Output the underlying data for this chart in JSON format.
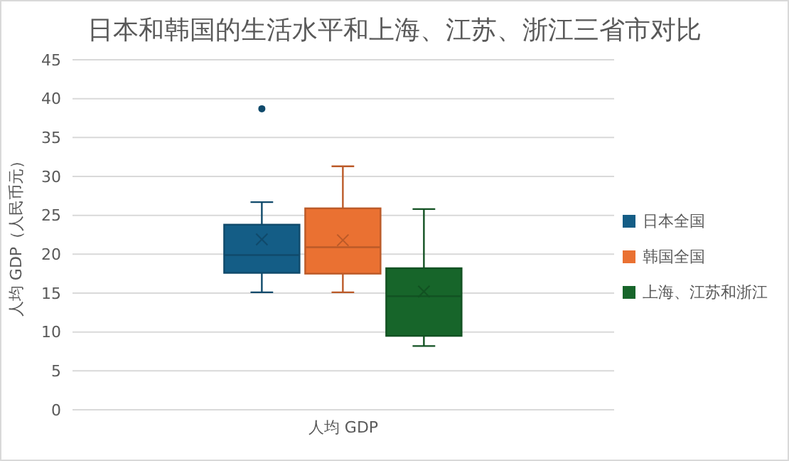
{
  "chart_data": {
    "type": "box",
    "title": "日本和韩国的生活水平和上海、江苏、浙江三省市对比",
    "ylabel": "人均 GDP（人民币元）",
    "categories": [
      "人均 GDP"
    ],
    "series": [
      {
        "name": "日本全国",
        "color": "#145d86",
        "boxes": [
          {
            "low": 15.1,
            "q1": 17.6,
            "median": 19.9,
            "q3": 23.8,
            "high": 26.7,
            "mean": 21.9,
            "outliers": [
              38.7
            ]
          }
        ]
      },
      {
        "name": "韩国全国",
        "color": "#ea7132",
        "boxes": [
          {
            "low": 15.1,
            "q1": 17.5,
            "median": 20.9,
            "q3": 25.9,
            "high": 31.3,
            "mean": 21.8
          }
        ]
      },
      {
        "name": "上海、江苏和浙江",
        "color": "#17652a",
        "boxes": [
          {
            "low": 8.2,
            "q1": 9.5,
            "median": 14.6,
            "q3": 18.2,
            "high": 25.8,
            "mean": 15.2
          }
        ]
      }
    ],
    "ylim": [
      0,
      45
    ],
    "yticks": [
      0,
      5,
      10,
      15,
      20,
      25,
      30,
      35,
      40,
      45
    ],
    "grid": "y",
    "legend": "right"
  }
}
